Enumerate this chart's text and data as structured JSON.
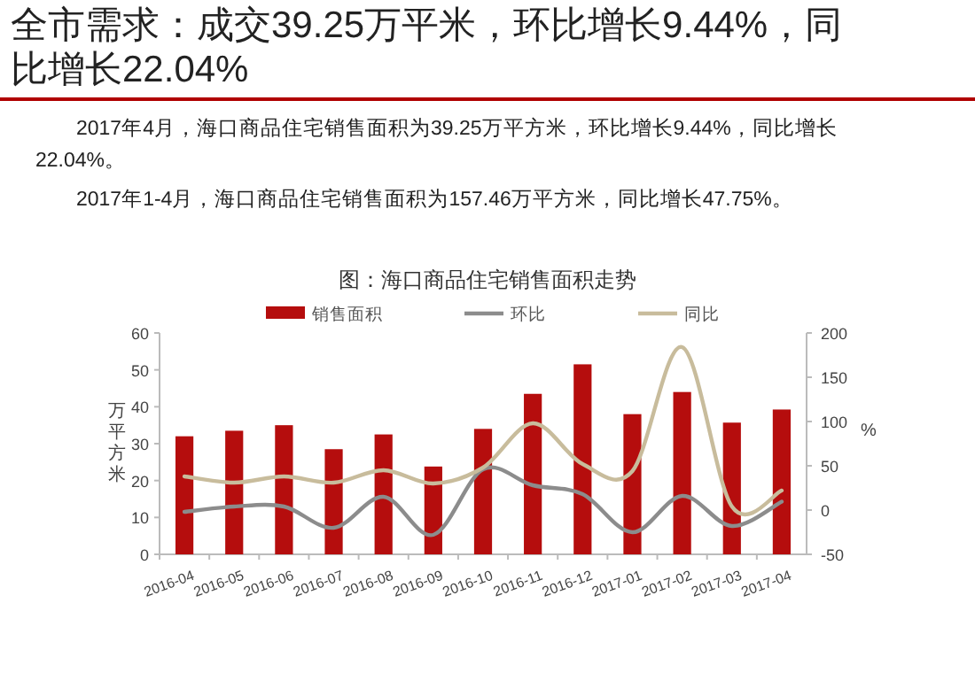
{
  "chart_data": {
    "type": "bar",
    "title": "全市需求：成交39.25万平米，环比增长9.44%，同比增长22.04%",
    "subtitle": "图：海口商品住宅销售面积走势",
    "annotations": [
      "2017年4月，海口商品住宅销售面积为39.25万平方米，环比增长9.44%，同比增长22.04%。",
      "2017年1-4月，海口商品住宅销售面积为157.46万平方米，同比增长47.75%。"
    ],
    "ylabel": "万平方米",
    "y2label": "%",
    "categories": [
      "2016-04",
      "2016-05",
      "2016-06",
      "2016-07",
      "2016-08",
      "2016-09",
      "2016-10",
      "2016-11",
      "2016-12",
      "2017-01",
      "2017-02",
      "2017-03",
      "2017-04"
    ],
    "series": [
      {
        "name": "销售面积",
        "color": "#b50d0d",
        "values": [
          32,
          33.5,
          35,
          28.5,
          32.5,
          23.8,
          34,
          43.5,
          51.5,
          38,
          44,
          35.7,
          39.25
        ]
      },
      {
        "name": "环比",
        "type": "line",
        "axis": "y2",
        "color": "#8c8c8c",
        "values": [
          -2,
          4,
          4,
          -20,
          15,
          -28,
          46,
          28,
          18,
          -25,
          16,
          -18,
          9.44
        ]
      },
      {
        "name": "同比",
        "type": "line",
        "axis": "y2",
        "color": "#c8bc9c",
        "values": [
          38,
          31,
          38,
          31,
          45,
          30,
          48,
          98,
          52,
          44,
          184,
          4,
          22.04
        ]
      }
    ],
    "ylim": [
      0,
      60
    ],
    "yticks": [
      0,
      10,
      20,
      30,
      40,
      50,
      60
    ],
    "y2lim": [
      -50,
      200
    ],
    "y2ticks": [
      -50,
      0,
      50,
      100,
      150,
      200
    ],
    "legend": "top",
    "grid": false
  }
}
